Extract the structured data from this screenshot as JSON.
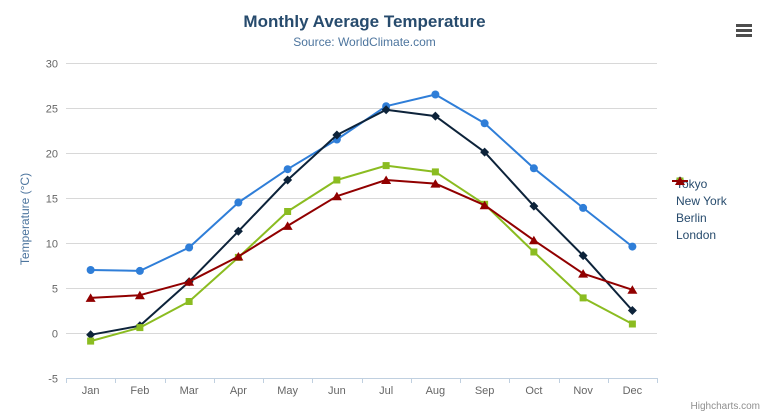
{
  "chart": {
    "credits_label": "Highcharts.com",
    "icons": {
      "context_menu": "hamburger-menu-icon"
    },
    "colors": {
      "title": "#274b6d",
      "subtitle": "#4d759e",
      "axis_labels": "#666666",
      "grid": "#d8d8d8",
      "axis_line": "#c0d0e0",
      "credits": "#8f8f8f"
    }
  },
  "chart_data": {
    "type": "line",
    "title": "Monthly Average Temperature",
    "subtitle": "Source: WorldClimate.com",
    "xlabel": "",
    "ylabel": "Temperature (°C)",
    "categories": [
      "Jan",
      "Feb",
      "Mar",
      "Apr",
      "May",
      "Jun",
      "Jul",
      "Aug",
      "Sep",
      "Oct",
      "Nov",
      "Dec"
    ],
    "series": [
      {
        "name": "Tokyo",
        "color": "#2f7ed8",
        "marker": "circle",
        "values": [
          7.0,
          6.9,
          9.5,
          14.5,
          18.2,
          21.5,
          25.2,
          26.5,
          23.3,
          18.3,
          13.9,
          9.6
        ]
      },
      {
        "name": "New York",
        "color": "#0d233a",
        "marker": "diamond",
        "values": [
          -0.2,
          0.8,
          5.7,
          11.3,
          17.0,
          22.0,
          24.8,
          24.1,
          20.1,
          14.1,
          8.6,
          2.5
        ]
      },
      {
        "name": "Berlin",
        "color": "#8bbc21",
        "marker": "square",
        "values": [
          -0.9,
          0.6,
          3.5,
          8.4,
          13.5,
          17.0,
          18.6,
          17.9,
          14.3,
          9.0,
          3.9,
          1.0
        ]
      },
      {
        "name": "London",
        "color": "#910000",
        "marker": "triangle",
        "values": [
          3.9,
          4.2,
          5.7,
          8.5,
          11.9,
          15.2,
          17.0,
          16.6,
          14.2,
          10.3,
          6.6,
          4.8
        ]
      }
    ],
    "ylim": [
      -5,
      30
    ],
    "yticks": [
      -5,
      0,
      5,
      10,
      15,
      20,
      25,
      30
    ],
    "grid": true,
    "legend_position": "right"
  }
}
